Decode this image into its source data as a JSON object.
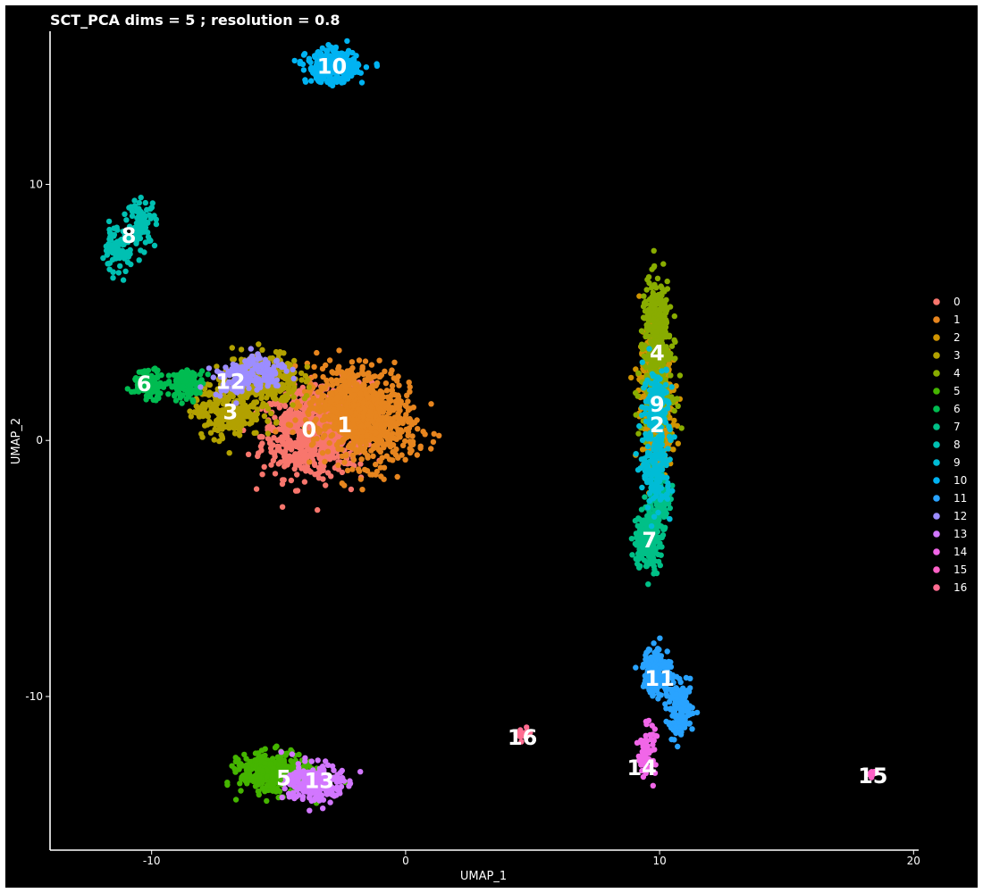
{
  "chart_data": {
    "type": "scatter",
    "title": "SCT_PCA dims =  5 ; resolution = 0.8",
    "xlabel": "UMAP_1",
    "ylabel": "UMAP_2",
    "xlim": [
      -14,
      20.2
    ],
    "ylim": [
      -16.0,
      17.2
    ],
    "xticks": [
      -10,
      0,
      10,
      20
    ],
    "yticks": [
      -10,
      0,
      10
    ],
    "grid": false,
    "legend_position": "right",
    "clusters": [
      {
        "name": "0",
        "color": "#F8766D",
        "label_xy": [
          -3.8,
          0.4
        ],
        "centers": [
          [
            -4.0,
            0.2
          ],
          [
            -3.0,
            0.6
          ]
        ],
        "spread": [
          1.5,
          1.5
        ],
        "count": 900
      },
      {
        "name": "1",
        "color": "#E7851E",
        "label_xy": [
          -2.4,
          0.6
        ],
        "centers": [
          [
            -1.3,
            0.5
          ],
          [
            -2.2,
            1.5
          ]
        ],
        "spread": [
          1.6,
          1.4
        ],
        "count": 900
      },
      {
        "name": "2",
        "color": "#D09400",
        "label_xy": [
          9.9,
          0.6
        ],
        "centers": [
          [
            9.9,
            0.6
          ],
          [
            9.8,
            2.5
          ]
        ],
        "spread": [
          0.55,
          1.6
        ],
        "count": 450
      },
      {
        "name": "3",
        "color": "#B2A100",
        "label_xy": [
          -6.9,
          1.1
        ],
        "centers": [
          [
            -7.0,
            1.2
          ],
          [
            -5.5,
            2.4
          ]
        ],
        "spread": [
          1.2,
          1.0
        ],
        "count": 500
      },
      {
        "name": "4",
        "color": "#89AC00",
        "label_xy": [
          9.9,
          3.4
        ],
        "centers": [
          [
            9.9,
            4.5
          ],
          [
            9.9,
            2.0
          ]
        ],
        "spread": [
          0.55,
          1.6
        ],
        "count": 450
      },
      {
        "name": "5",
        "color": "#45B500",
        "label_xy": [
          -4.8,
          -13.2
        ],
        "centers": [
          [
            -5.2,
            -13.0
          ]
        ],
        "spread": [
          1.2,
          0.7
        ],
        "count": 380
      },
      {
        "name": "6",
        "color": "#00BC51",
        "label_xy": [
          -10.3,
          2.2
        ],
        "centers": [
          [
            -10.1,
            2.2
          ],
          [
            -8.6,
            2.2
          ]
        ],
        "spread": [
          0.6,
          0.5
        ],
        "count": 230
      },
      {
        "name": "7",
        "color": "#00C087",
        "label_xy": [
          9.6,
          -3.9
        ],
        "centers": [
          [
            9.5,
            -4.0
          ],
          [
            9.9,
            -2.5
          ]
        ],
        "spread": [
          0.45,
          1.0
        ],
        "count": 330
      },
      {
        "name": "8",
        "color": "#00C0B2",
        "label_xy": [
          -10.9,
          8.0
        ],
        "centers": [
          [
            -11.4,
            7.4
          ],
          [
            -10.4,
            8.5
          ]
        ],
        "spread": [
          0.5,
          0.8
        ],
        "count": 170
      },
      {
        "name": "9",
        "color": "#00BCD6",
        "label_xy": [
          9.9,
          1.4
        ],
        "centers": [
          [
            9.9,
            1.4
          ],
          [
            9.9,
            -1.2
          ]
        ],
        "spread": [
          0.5,
          1.4
        ],
        "count": 300
      },
      {
        "name": "10",
        "color": "#00B3F2",
        "label_xy": [
          -2.9,
          14.6
        ],
        "centers": [
          [
            -2.9,
            14.6
          ]
        ],
        "spread": [
          0.9,
          0.55
        ],
        "count": 360
      },
      {
        "name": "11",
        "color": "#29A3FF",
        "label_xy": [
          10.0,
          -9.3
        ],
        "centers": [
          [
            9.9,
            -9.0
          ],
          [
            10.8,
            -10.5
          ]
        ],
        "spread": [
          0.5,
          0.9
        ],
        "count": 300
      },
      {
        "name": "12",
        "color": "#9C8DFF",
        "label_xy": [
          -6.9,
          2.3
        ],
        "centers": [
          [
            -6.7,
            2.4
          ],
          [
            -5.6,
            2.8
          ]
        ],
        "spread": [
          0.8,
          0.6
        ],
        "count": 170
      },
      {
        "name": "13",
        "color": "#D277FF",
        "label_xy": [
          -3.4,
          -13.3
        ],
        "centers": [
          [
            -3.6,
            -13.4
          ]
        ],
        "spread": [
          1.0,
          0.7
        ],
        "count": 240
      },
      {
        "name": "14",
        "color": "#F166E8",
        "label_xy": [
          9.3,
          -12.8
        ],
        "centers": [
          [
            9.5,
            -12.1
          ]
        ],
        "spread": [
          0.3,
          0.9
        ],
        "count": 70
      },
      {
        "name": "15",
        "color": "#FF61C7",
        "label_xy": [
          18.4,
          -13.1
        ],
        "centers": [
          [
            18.4,
            -13.0
          ]
        ],
        "spread": [
          0.15,
          0.12
        ],
        "count": 14
      },
      {
        "name": "16",
        "color": "#FF6C91",
        "label_xy": [
          4.6,
          -11.6
        ],
        "centers": [
          [
            4.6,
            -11.5
          ]
        ],
        "spread": [
          0.2,
          0.2
        ],
        "count": 18
      }
    ]
  }
}
